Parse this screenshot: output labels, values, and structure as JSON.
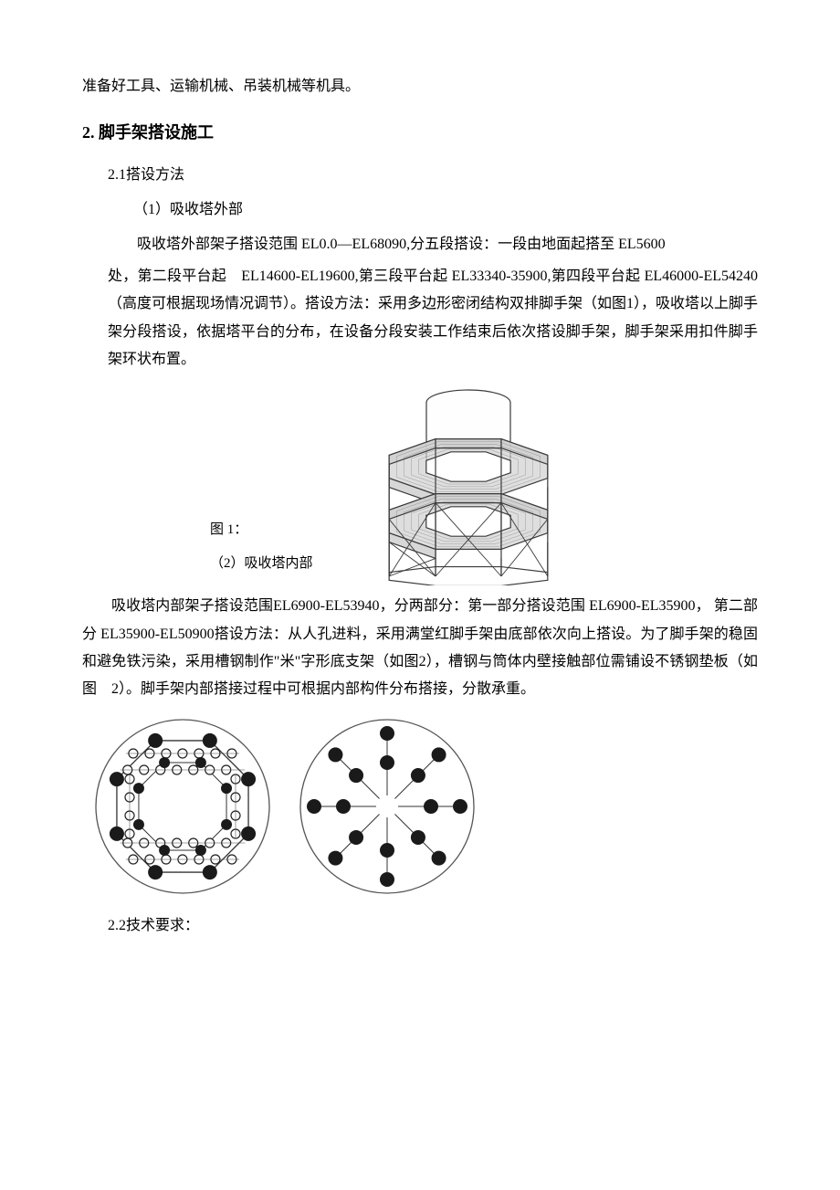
{
  "top_line": "准备好工具、运输机械、吊装机械等机具。",
  "section": {
    "number": "2.",
    "title": "脚手架搭设施工",
    "sub1": {
      "heading": "2.1搭设方法",
      "item1": {
        "title": "（1）吸收塔外部",
        "para1": "吸收塔外部架子搭设范围 EL0.0—EL68090,分五段搭设：一段由地面起搭至 EL5600",
        "para2": "处，第二段平台起　EL14600-EL19600,第三段平台起 EL33340-35900,第四段平台起 EL46000-EL54240（高度可根据现场情况调节）。搭设方法：采用多边形密闭结构双排脚手架（如图1），吸收塔以上脚手架分段搭设，依据塔平台的分布，在设备分段安装工作结束后依次搭设脚手架，脚手架采用扣件脚手架环状布置。"
      },
      "fig1_label": "图 1：",
      "item2": {
        "title": "（2）吸收塔内部",
        "para1": "吸收塔内部架子搭设范围EL6900-EL53940，分两部分：第一部分搭设范围 EL6900-EL35900， 第二部分 EL35900-EL50900搭设方法：从人孔进料，采用满堂红脚手架由底部依次向上搭设。为了脚手架的稳固和避免铁污染，采用槽钢制作\"米\"字形底支架（如图2），槽钢与筒体内壁接触部位需铺设不锈钢垫板（如图　2）。脚手架内部搭接过程中可根据内部构件分布搭接，分散承重。"
      }
    },
    "sub2": {
      "heading": "2.2技术要求："
    }
  },
  "fig1": {
    "stroke": "#3a3a3a",
    "fill_light": "#fefefe",
    "fill_platform": "#d0d0d0",
    "bg": "#ffffff",
    "line_w": 1.2
  },
  "fig2a": {
    "circle_stroke": "#555555",
    "node_fill_dark": "#1a1a1a",
    "node_fill_light": "#ffffff",
    "node_stroke": "#222222",
    "line_stroke": "#333333",
    "radius": 95,
    "node_r_lg": 8,
    "node_r_sm": 5
  },
  "fig2b": {
    "circle_stroke": "#555555",
    "node_fill": "#1a1a1a",
    "line_stroke": "#333333",
    "radius": 95,
    "node_r": 8
  }
}
